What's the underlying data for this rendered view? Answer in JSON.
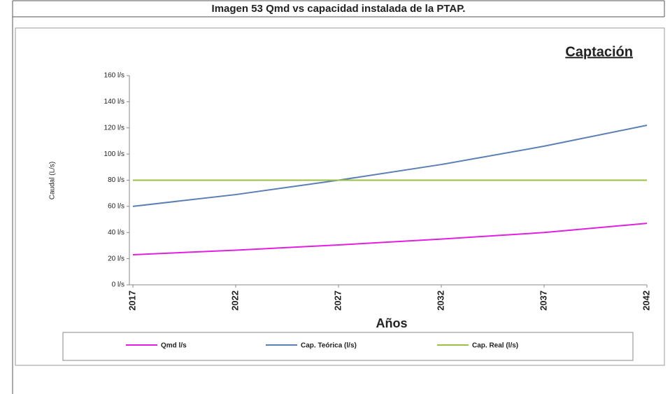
{
  "caption": "Imagen 53 Qmd vs capacidad instalada de la PTAP.",
  "chart_data": {
    "type": "line",
    "title": "Captación",
    "ylabel": "Caudal (L/s)",
    "xlabel": "Años",
    "x": [
      2017,
      2022,
      2027,
      2032,
      2037,
      2042
    ],
    "xlim": [
      2017,
      2042
    ],
    "xticks": [
      2017,
      2022,
      2027,
      2032,
      2037,
      2042
    ],
    "ylim": [
      0,
      160
    ],
    "yticks": [
      {
        "value": 0,
        "label": "0 l/s"
      },
      {
        "value": 20,
        "label": "20 l/s"
      },
      {
        "value": 40,
        "label": "40 l/s"
      },
      {
        "value": 60,
        "label": "60 l/s"
      },
      {
        "value": 80,
        "label": "80 l/s"
      },
      {
        "value": 100,
        "label": "100 l/s"
      },
      {
        "value": 120,
        "label": "120 l/s"
      },
      {
        "value": 140,
        "label": "140 l/s"
      },
      {
        "value": 160,
        "label": "160 l/s"
      }
    ],
    "grid": false,
    "legend": "bottom",
    "series": [
      {
        "name": "Qmd l/s",
        "color": "#e020e0",
        "values": [
          23,
          26.5,
          30.5,
          35,
          40,
          47
        ]
      },
      {
        "name": "Cap. Teórica (l/s)",
        "color": "#5b7fb5",
        "values": [
          60,
          69,
          80,
          92,
          106,
          122
        ]
      },
      {
        "name": "Cap. Real (l/s)",
        "color": "#9bc045",
        "values": [
          80,
          80,
          80,
          80,
          80,
          80
        ]
      }
    ]
  }
}
